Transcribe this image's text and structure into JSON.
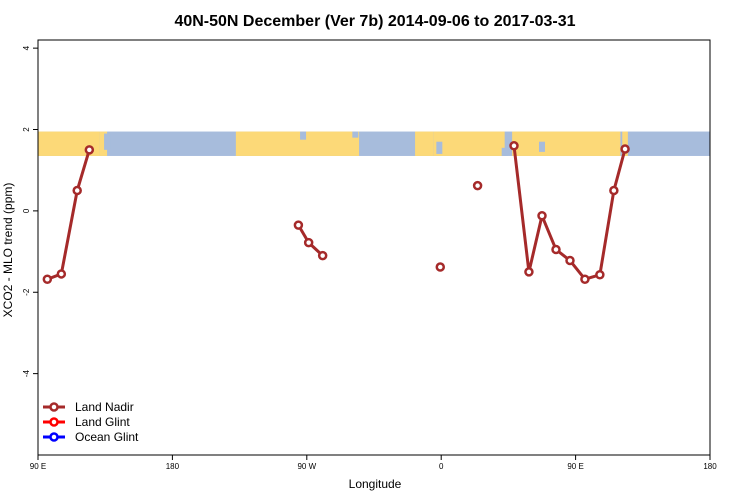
{
  "chart_data": {
    "type": "line",
    "title": "40N-50N December (Ver 7b)   2014-09-06 to 2017-03-31",
    "xlabel": "Longitude",
    "ylabel": "XCO2 - MLO trend (ppm)",
    "xlim": [
      90,
      450
    ],
    "ylim": [
      -6,
      4.2
    ],
    "x_ticks": [
      {
        "value": 90,
        "label": "90 E"
      },
      {
        "value": 162,
        "label": "180"
      },
      {
        "value": 234,
        "label": "90 W"
      },
      {
        "value": 306,
        "label": "0"
      },
      {
        "value": 378,
        "label": "90 E"
      },
      {
        "value": 450,
        "label": "180"
      }
    ],
    "y_ticks": [
      {
        "value": -4,
        "label": "-4"
      },
      {
        "value": -2,
        "label": "-2"
      },
      {
        "value": 0,
        "label": "0"
      },
      {
        "value": 2,
        "label": "2"
      },
      {
        "value": 4,
        "label": "4"
      }
    ],
    "map_band": {
      "ymin": 1.35,
      "ymax": 1.95,
      "ocean_color": "#a7bcdc",
      "land_color": "#fcd978"
    },
    "legend": {
      "position": "bottom-left"
    },
    "series": [
      {
        "name": "Land Nadir",
        "color": "#a52a2a",
        "segments": [
          [
            [
              95,
              -1.68
            ],
            [
              102.5,
              -1.55
            ],
            [
              111,
              0.5
            ],
            [
              117.5,
              1.5
            ]
          ],
          [
            [
              229.5,
              -0.35
            ],
            [
              235,
              -0.78
            ],
            [
              242.5,
              -1.1
            ]
          ],
          [
            [
              305.5,
              -1.38
            ]
          ],
          [
            [
              325.5,
              0.62
            ]
          ],
          [
            [
              345,
              1.6
            ],
            [
              353,
              -1.5
            ],
            [
              360,
              -0.12
            ],
            [
              367.5,
              -0.95
            ],
            [
              375,
              -1.22
            ],
            [
              383,
              -1.68
            ],
            [
              391,
              -1.57
            ],
            [
              398.5,
              0.5
            ],
            [
              404.5,
              1.52
            ]
          ]
        ]
      },
      {
        "name": "Land Glint",
        "color": "#ff0000",
        "segments": []
      },
      {
        "name": "Ocean Glint",
        "color": "#0000ff",
        "segments": []
      }
    ]
  }
}
